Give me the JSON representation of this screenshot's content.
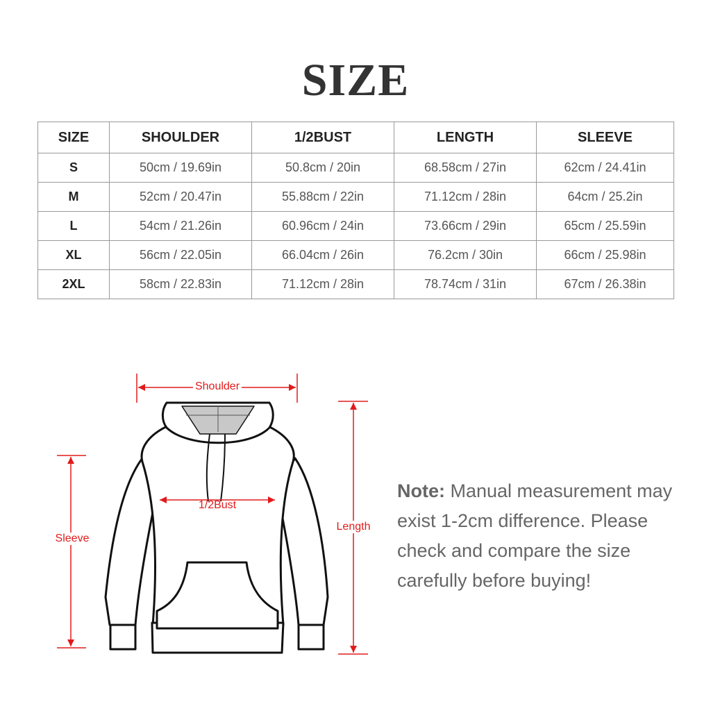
{
  "title": "SIZE",
  "table": {
    "headers": [
      "SIZE",
      "SHOULDER",
      "1/2BUST",
      "LENGTH",
      "SLEEVE"
    ],
    "rows": [
      [
        "S",
        "50cm / 19.69in",
        "50.8cm / 20in",
        "68.58cm / 27in",
        "62cm / 24.41in"
      ],
      [
        "M",
        "52cm / 20.47in",
        "55.88cm / 22in",
        "71.12cm / 28in",
        "64cm / 25.2in"
      ],
      [
        "L",
        "54cm / 21.26in",
        "60.96cm / 24in",
        "73.66cm / 29in",
        "65cm / 25.59in"
      ],
      [
        "XL",
        "56cm / 22.05in",
        "66.04cm / 26in",
        "76.2cm / 30in",
        "66cm / 25.98in"
      ],
      [
        "2XL",
        "58cm / 22.83in",
        "71.12cm / 28in",
        "78.74cm / 31in",
        "67cm / 26.38in"
      ]
    ]
  },
  "diagram": {
    "labels": {
      "shoulder": "Shoulder",
      "bust": "1/2Bust",
      "length": "Length",
      "sleeve": "Sleeve"
    },
    "accent_color": "#e01b1b"
  },
  "note": {
    "label": "Note:",
    "text": " Manual measurement may exist 1-2cm difference. Please check and compare the size carefully before buying!"
  }
}
